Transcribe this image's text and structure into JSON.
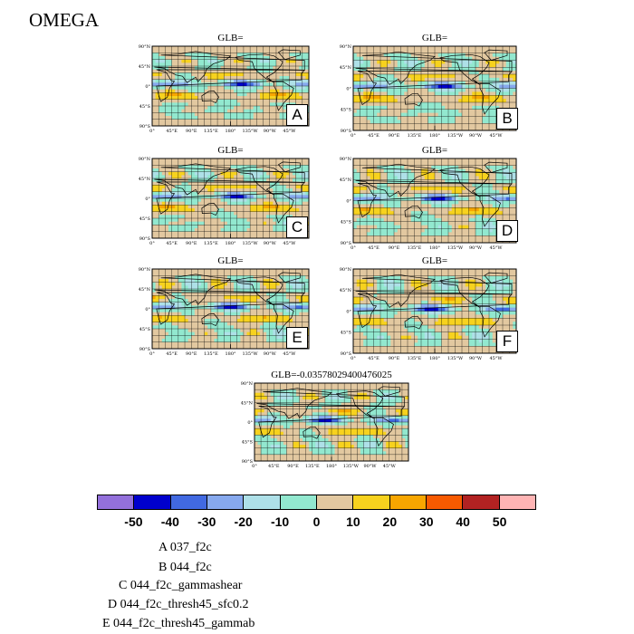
{
  "title": "OMEGA",
  "panels": [
    {
      "letter": "A",
      "glb": "GLB="
    },
    {
      "letter": "B",
      "glb": "GLB="
    },
    {
      "letter": "C",
      "glb": "GLB="
    },
    {
      "letter": "D",
      "glb": "GLB="
    },
    {
      "letter": "E",
      "glb": "GLB="
    },
    {
      "letter": "F",
      "glb": "GLB="
    },
    {
      "letter": "",
      "glb": "GLB=-0.035780294004760​25"
    }
  ],
  "lat_ticks": [
    "90°N",
    "45°N",
    "0°",
    "45°S",
    "90°S"
  ],
  "lon_ticks": [
    "0°",
    "45°E",
    "90°E",
    "135°E",
    "180°",
    "135°W",
    "90°W",
    "45°W"
  ],
  "colorbar": {
    "colors": [
      "#9370DB",
      "#0000CD",
      "#4169E1",
      "#87A9EE",
      "#AEE0E8",
      "#92E8CF",
      "#E2C8A0",
      "#F7D21E",
      "#F7A600",
      "#F75A00",
      "#B22222",
      "#FFB4B4"
    ],
    "labels": [
      "-50",
      "-40",
      "-30",
      "-20",
      "-10",
      "0",
      "10",
      "20",
      "30",
      "40",
      "50"
    ]
  },
  "legend": [
    "A  037_f2c",
    "B  044_f2c",
    "C  044_f2c_gammashear",
    "D  044_f2c_thresh45_sfc0.2",
    "E  044_f2c_thresh45_gammab"
  ]
}
